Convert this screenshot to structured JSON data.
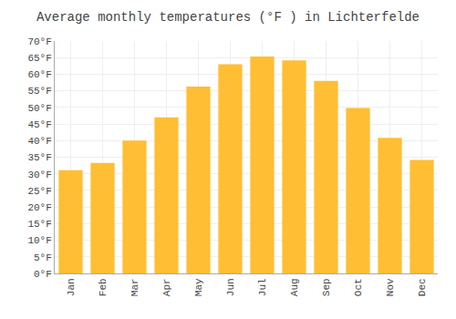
{
  "chart_data": {
    "type": "bar",
    "title": "Average monthly temperatures (°F ) in Lichterfelde",
    "categories": [
      "Jan",
      "Feb",
      "Mar",
      "Apr",
      "May",
      "Jun",
      "Jul",
      "Aug",
      "Sep",
      "Oct",
      "Nov",
      "Dec"
    ],
    "values": [
      31.1,
      33.3,
      40.0,
      47.0,
      56.3,
      63.0,
      65.3,
      64.2,
      58.0,
      49.8,
      40.8,
      34.2
    ],
    "color": "#FFBE33",
    "ylim": [
      0,
      70
    ],
    "yticks": [
      {
        "value": 0,
        "label": "0°F"
      },
      {
        "value": 5,
        "label": "5°F"
      },
      {
        "value": 10,
        "label": "10°F"
      },
      {
        "value": 15,
        "label": "15°F"
      },
      {
        "value": 20,
        "label": "20°F"
      },
      {
        "value": 25,
        "label": "25°F"
      },
      {
        "value": 30,
        "label": "30°F"
      },
      {
        "value": 35,
        "label": "35°F"
      },
      {
        "value": 40,
        "label": "40°F"
      },
      {
        "value": 45,
        "label": "45°F"
      },
      {
        "value": 50,
        "label": "50°F"
      },
      {
        "value": 55,
        "label": "55°F"
      },
      {
        "value": 60,
        "label": "60°F"
      },
      {
        "value": 65,
        "label": "65°F"
      },
      {
        "value": 70,
        "label": "70°F"
      }
    ],
    "grid": true
  }
}
